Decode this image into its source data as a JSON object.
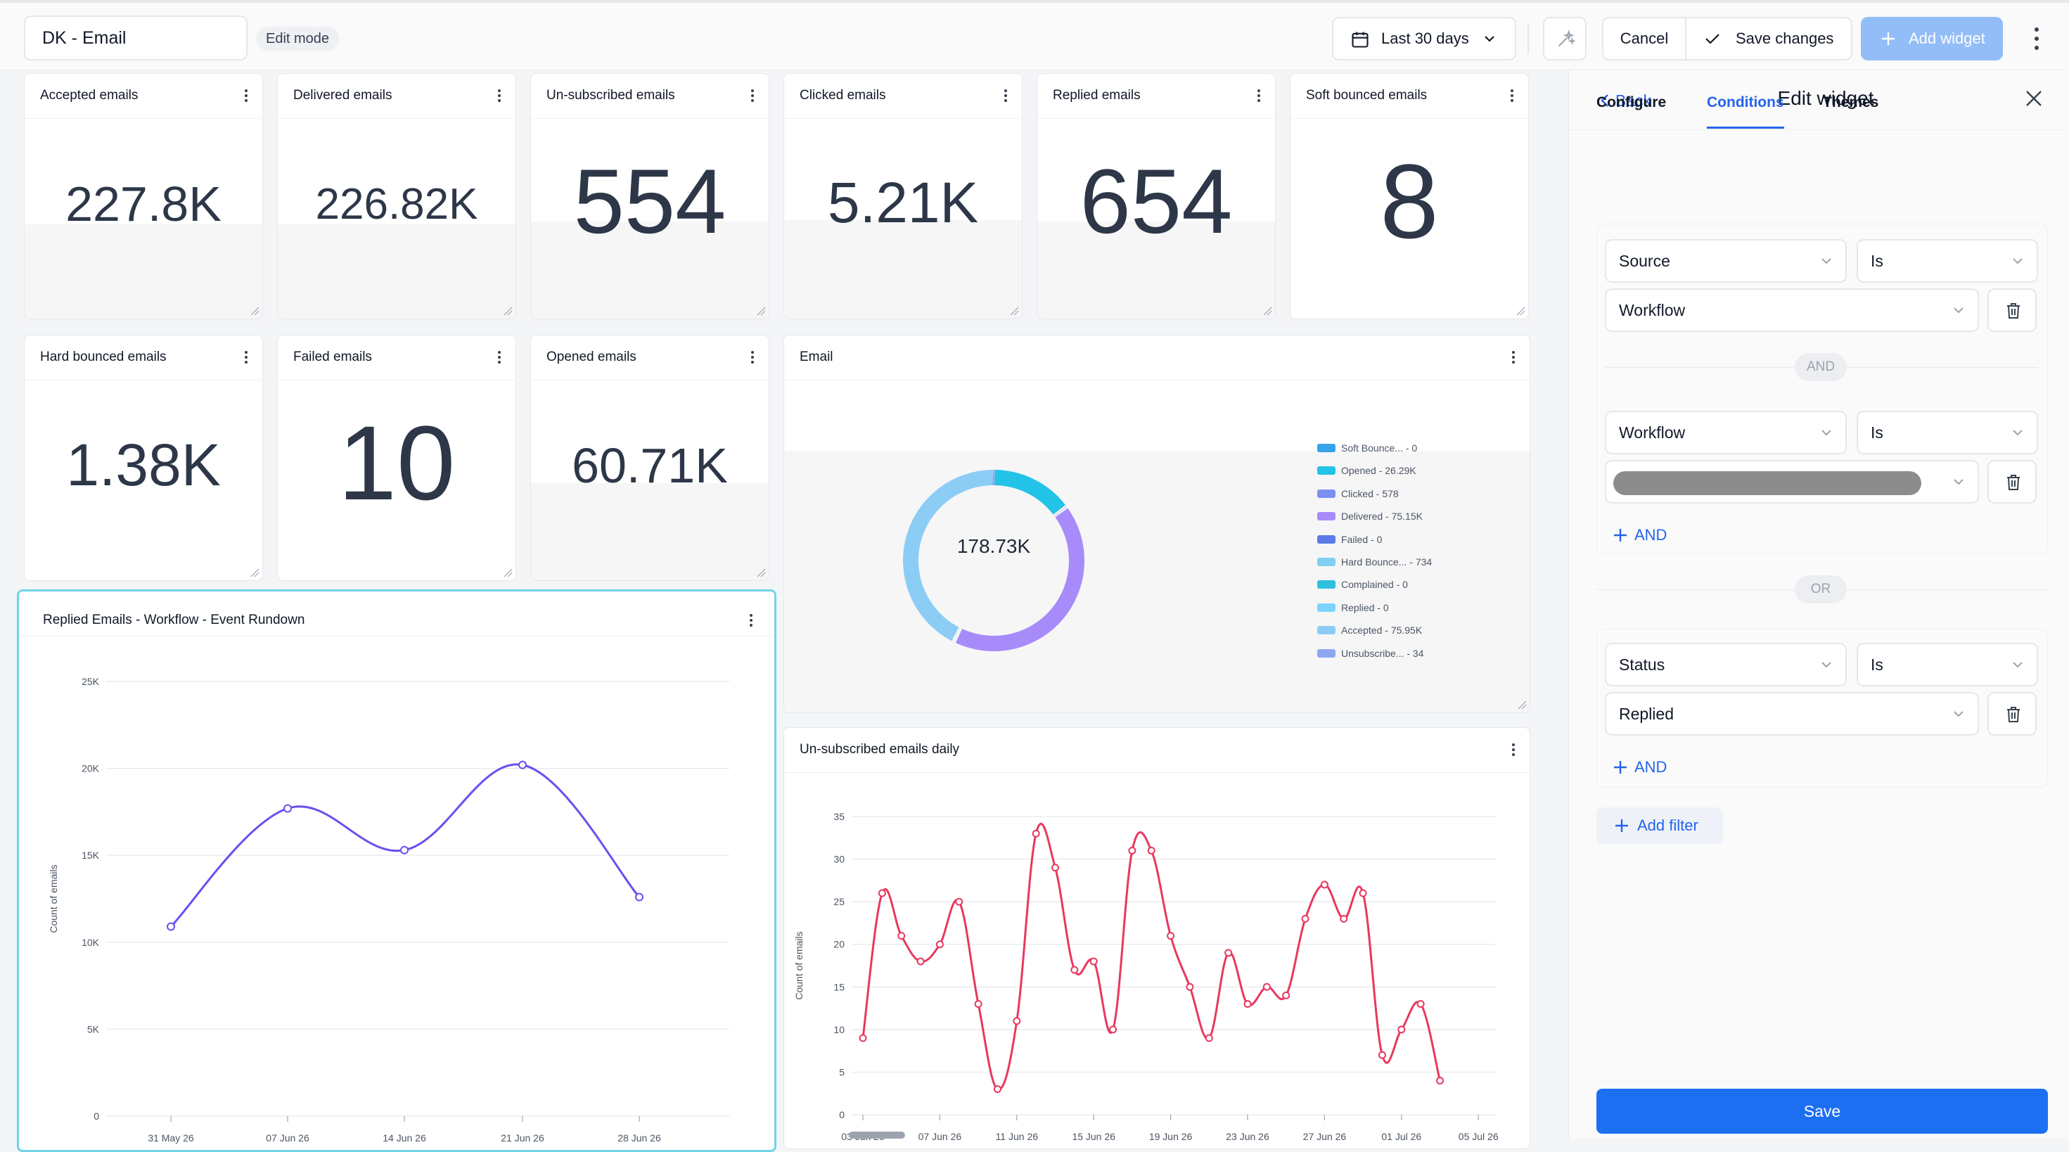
{
  "topbar": {
    "dashboard_name": "DK - Email",
    "mode_badge": "Edit mode",
    "date_range": "Last 30 days",
    "cancel": "Cancel",
    "save_changes": "Save changes",
    "add_widget": "Add widget"
  },
  "kpis": [
    {
      "title": "Accepted emails",
      "value": "227.8K"
    },
    {
      "title": "Delivered emails",
      "value": "226.82K"
    },
    {
      "title": "Un-subscribed emails",
      "value": "554"
    },
    {
      "title": "Clicked emails",
      "value": "5.21K"
    },
    {
      "title": "Replied emails",
      "value": "654"
    },
    {
      "title": "Soft bounced emails",
      "value": "8"
    },
    {
      "title": "Hard bounced emails",
      "value": "1.38K"
    },
    {
      "title": "Failed emails",
      "value": "10"
    },
    {
      "title": "Opened emails",
      "value": "60.71K"
    }
  ],
  "donut": {
    "title": "Email",
    "center_value": "178.73K",
    "legend": [
      {
        "label": "Soft Bounce... - 0",
        "color": "#36a3e8",
        "value": 0
      },
      {
        "label": "Opened - 26.29K",
        "color": "#22c3e6",
        "value": 26290
      },
      {
        "label": "Clicked - 578",
        "color": "#7c8ff0",
        "value": 578
      },
      {
        "label": "Delivered - 75.15K",
        "color": "#a78bfa",
        "value": 75150
      },
      {
        "label": "Failed - 0",
        "color": "#5b7be8",
        "value": 0
      },
      {
        "label": "Hard Bounce... - 734",
        "color": "#7fd0f0",
        "value": 734
      },
      {
        "label": "Complained - 0",
        "color": "#2fbfe0",
        "value": 0
      },
      {
        "label": "Replied - 0",
        "color": "#7dd3fc",
        "value": 0
      },
      {
        "label": "Accepted - 75.95K",
        "color": "#8ccdf6",
        "value": 75950
      },
      {
        "label": "Unsubscribe... - 34",
        "color": "#8fa6f2",
        "value": 34
      }
    ]
  },
  "line_widget": {
    "title": "Replied Emails - Workflow - Event Rundown"
  },
  "bar_widget": {
    "title": "Un-subscribed emails daily"
  },
  "chart_data": [
    {
      "type": "line",
      "title": "Replied Emails - Workflow - Event Rundown",
      "xlabel": "",
      "ylabel": "Count of emails",
      "categories": [
        "31 May 26",
        "07 Jun 26",
        "14 Jun 26",
        "21 Jun 26",
        "28 Jun 26"
      ],
      "y_ticks": [
        "0",
        "5K",
        "10K",
        "15K",
        "20K",
        "25K"
      ],
      "ylim": [
        0,
        25000
      ],
      "series": [
        {
          "values": [
            10900,
            17700,
            15300,
            20200,
            12600
          ],
          "color": "#6d4df0"
        }
      ],
      "grid": true
    },
    {
      "type": "line",
      "title": "Un-subscribed emails daily",
      "xlabel": "",
      "ylabel": "Count of emails",
      "x_ticks": [
        "03 Jun 26",
        "07 Jun 26",
        "11 Jun 26",
        "15 Jun 26",
        "19 Jun 26",
        "23 Jun 26",
        "27 Jun 26",
        "01 Jul 26",
        "05 Jul 26"
      ],
      "y_ticks": [
        "0",
        "5",
        "10",
        "15",
        "20",
        "25",
        "30",
        "35"
      ],
      "ylim": [
        0,
        35
      ],
      "series": [
        {
          "values": [
            9,
            26,
            21,
            18,
            20,
            25,
            13,
            3,
            11,
            33,
            29,
            17,
            18,
            10,
            31,
            31,
            21,
            15,
            9,
            19,
            13,
            15,
            14,
            23,
            27,
            23,
            26,
            7,
            10,
            13,
            4
          ],
          "color": "#e8385f"
        }
      ],
      "grid": true
    }
  ],
  "panel": {
    "back": "Back",
    "title": "Edit widget",
    "tabs": [
      "Configure",
      "Conditions",
      "Themes"
    ],
    "group1": {
      "rows": [
        {
          "field": "Source",
          "op": "Is",
          "value": "Workflow"
        },
        {
          "field": "Workflow",
          "op": "Is",
          "value": ""
        }
      ],
      "joiner": "AND",
      "add_and": "AND"
    },
    "or_label": "OR",
    "group2": {
      "rows": [
        {
          "field": "Status",
          "op": "Is",
          "value": "Replied"
        }
      ],
      "add_and": "AND"
    },
    "add_filter": "Add filter",
    "save": "Save"
  }
}
